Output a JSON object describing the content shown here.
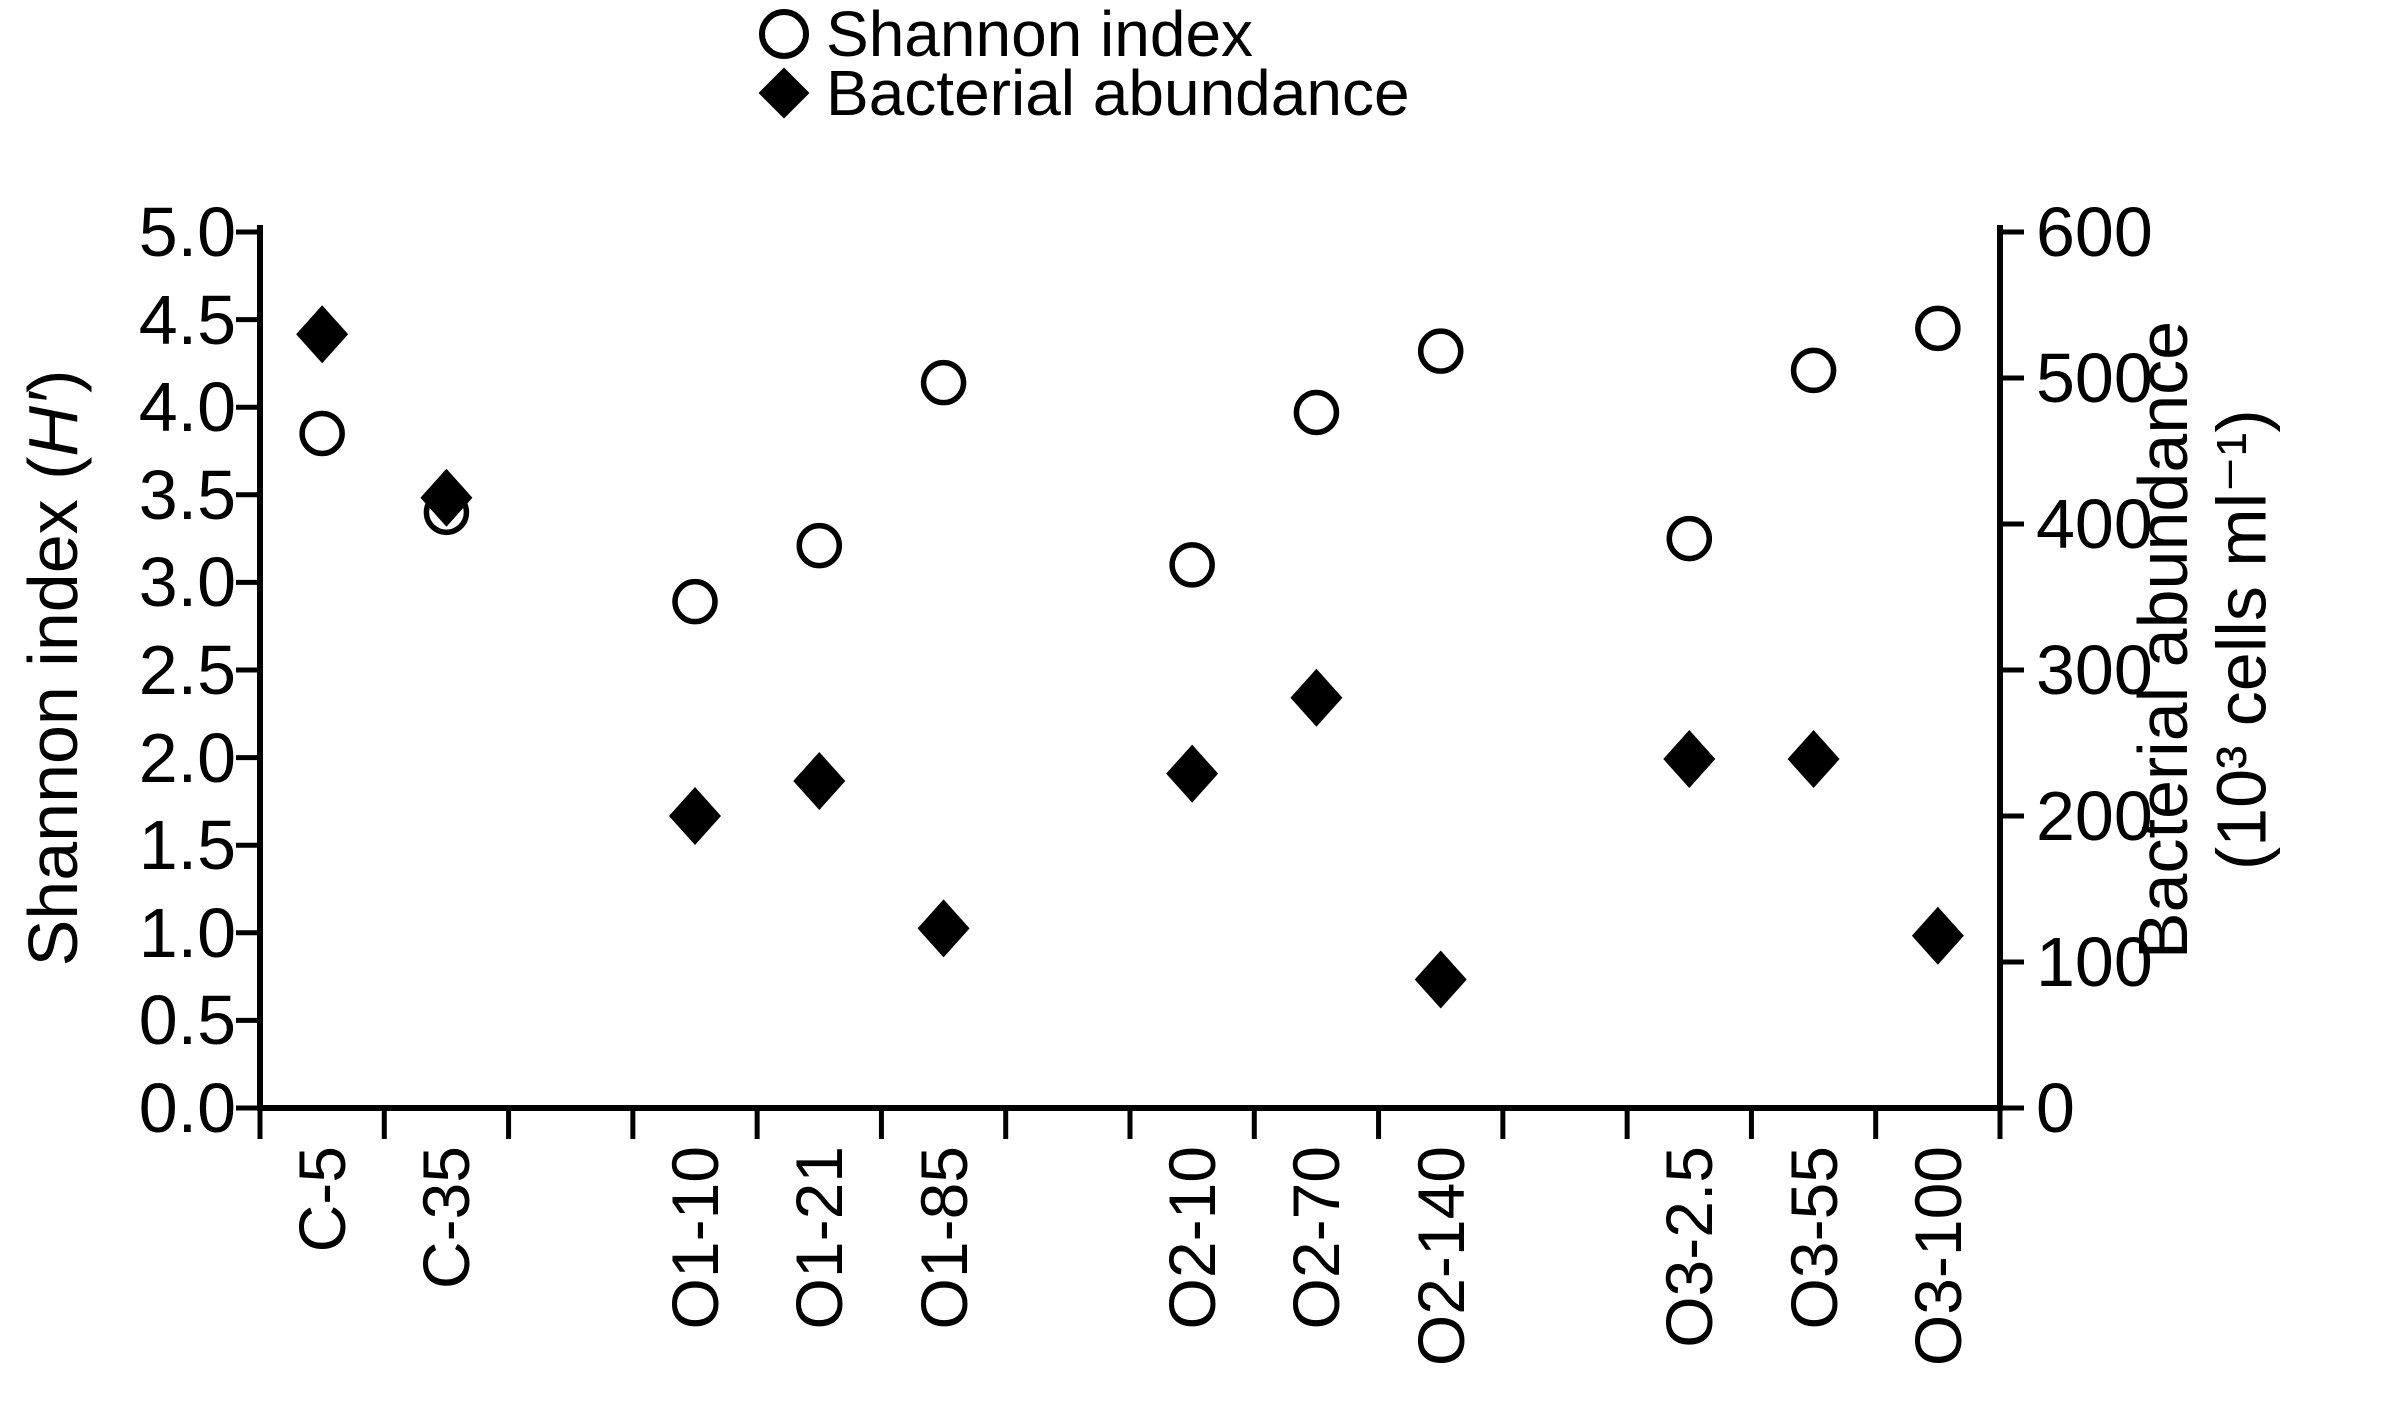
{
  "chart_data": {
    "type": "scatter",
    "title": "",
    "categories": [
      "C-5",
      "C-35",
      "O1-10",
      "O1-21",
      "O1-85",
      "O2-10",
      "O2-70",
      "O2-140",
      "O3-2.5",
      "O3-55",
      "O3-100"
    ],
    "slot_index": [
      0,
      1,
      3,
      4,
      5,
      7,
      8,
      9,
      11,
      12,
      13
    ],
    "num_slots": 14,
    "gap_slots": [
      2,
      6,
      10
    ],
    "series": [
      {
        "name": "Shannon index",
        "axis": "left",
        "marker": "open-circle",
        "values": [
          3.85,
          3.4,
          2.89,
          3.21,
          4.14,
          3.1,
          3.97,
          4.32,
          3.25,
          4.21,
          4.45
        ]
      },
      {
        "name": "Bacterial abundance",
        "axis": "right",
        "marker": "filled-diamond",
        "values": [
          530,
          418,
          200,
          224,
          123,
          229,
          281,
          88,
          239,
          239,
          118
        ]
      }
    ],
    "left_axis": {
      "title_prefix": "Shannon index (",
      "title_italic": "H′",
      "title_suffix": ")",
      "ticks": [
        "0.0",
        "0.5",
        "1.0",
        "1.5",
        "2.0",
        "2.5",
        "3.0",
        "3.5",
        "4.0",
        "4.5",
        "5.0"
      ],
      "range": [
        0,
        5
      ]
    },
    "right_axis": {
      "title_line1": "Bacterial abundance",
      "title_line2": "(10³ cells ml⁻¹)",
      "ticks": [
        "0",
        "100",
        "200",
        "300",
        "400",
        "500",
        "600"
      ],
      "range": [
        0,
        600
      ]
    },
    "x_axis": {
      "label_rotation_deg": -90
    },
    "grid": false,
    "legend_position": "top-center",
    "colors": {
      "foreground": "#000000",
      "background": "#ffffff"
    }
  }
}
